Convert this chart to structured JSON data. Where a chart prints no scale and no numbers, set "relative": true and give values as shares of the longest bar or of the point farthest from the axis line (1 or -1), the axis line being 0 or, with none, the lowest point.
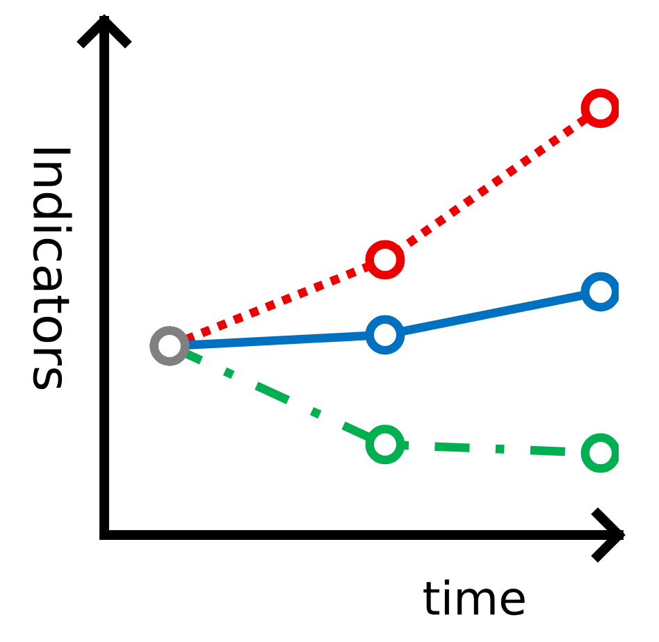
{
  "chart_data": {
    "type": "line",
    "relative": true,
    "xlabel": "time",
    "ylabel": "Indicators",
    "categories": [
      null,
      null,
      null
    ],
    "marker": "circle",
    "series": [
      {
        "color": "#ee0000",
        "colors": [
          "#808080",
          "#ee0000",
          "#ee0000"
        ],
        "line_style": "dotted",
        "values": [
          0.443,
          0.645,
          1
        ]
      },
      {
        "color": "#0070c0",
        "colors": [
          "#808080",
          "#0070c0",
          "#0070c0"
        ],
        "line_style": "solid",
        "values": [
          0.443,
          0.469,
          0.57
        ]
      },
      {
        "color": "#00b050",
        "colors": [
          "#808080",
          "#00b050",
          "#00b050"
        ],
        "line_style": "dashdot",
        "values": [
          0.443,
          0.212,
          0.192
        ]
      }
    ]
  }
}
